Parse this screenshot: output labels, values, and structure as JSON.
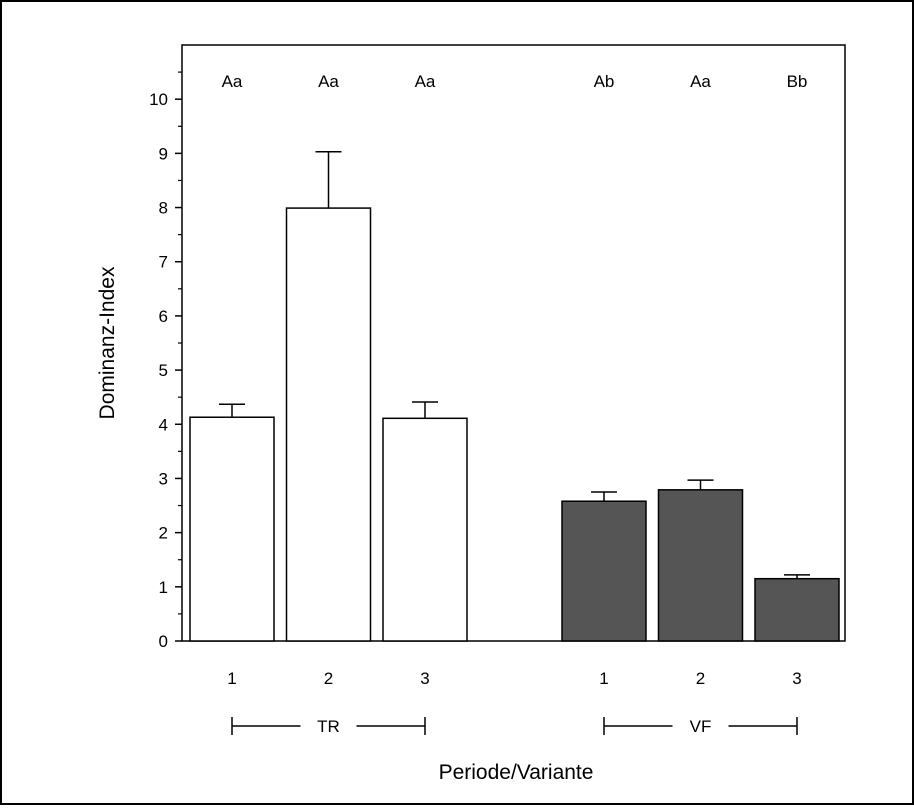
{
  "chart_data": {
    "type": "bar",
    "title": "",
    "xlabel": "Periode/Variante",
    "ylabel": "Dominanz-Index",
    "ylim": [
      0,
      11
    ],
    "yticks": [
      0,
      1,
      2,
      3,
      4,
      5,
      6,
      7,
      8,
      9,
      10
    ],
    "grid": false,
    "groups": [
      {
        "name": "TR",
        "color": "#ffffff",
        "bars": [
          {
            "category": "1",
            "value": 4.13,
            "error": 0.24,
            "significance": "Aa"
          },
          {
            "category": "2",
            "value": 7.99,
            "error": 1.04,
            "significance": "Aa"
          },
          {
            "category": "3",
            "value": 4.11,
            "error": 0.3,
            "significance": "Aa"
          }
        ]
      },
      {
        "name": "VF",
        "color": "#555555",
        "bars": [
          {
            "category": "1",
            "value": 2.58,
            "error": 0.17,
            "significance": "Ab"
          },
          {
            "category": "2",
            "value": 2.79,
            "error": 0.18,
            "significance": "Aa"
          },
          {
            "category": "3",
            "value": 1.15,
            "error": 0.07,
            "significance": "Bb"
          }
        ]
      }
    ]
  }
}
